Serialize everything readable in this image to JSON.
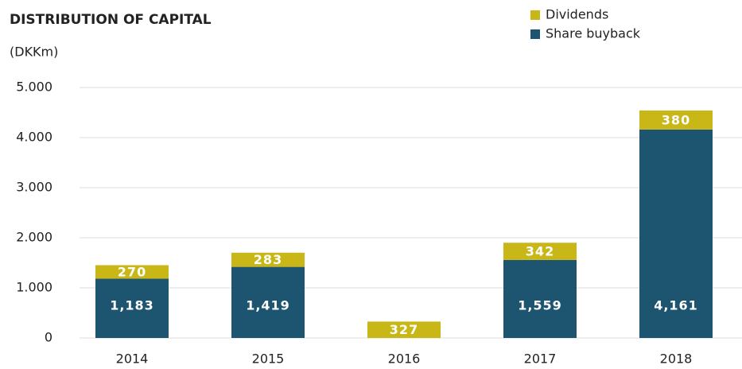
{
  "chart_data": {
    "type": "stacked_bar",
    "title": "DISTRIBUTION OF CAPITAL",
    "subtitle": "(DKKm)",
    "categories": [
      "2014",
      "2015",
      "2016",
      "2017",
      "2018"
    ],
    "series": [
      {
        "name": "Share buyback",
        "color": "#1d5470",
        "values": [
          1183,
          1419,
          null,
          1559,
          4161
        ],
        "value_labels": [
          "1,183",
          "1,419",
          null,
          "1,559",
          "4,161"
        ]
      },
      {
        "name": "Dividends",
        "color": "#c9b617",
        "values": [
          270,
          283,
          327,
          342,
          380
        ]
      }
    ],
    "ylim": [
      0,
      5000
    ],
    "yticks": [
      0,
      {
        "value": 1000,
        "label": "1.000"
      },
      {
        "value": 2000,
        "label": "2.000"
      },
      {
        "value": 3000,
        "label": "3.000"
      },
      {
        "value": 4000,
        "label": "4.000"
      },
      {
        "value": 5000,
        "label": "5.000"
      }
    ],
    "grid": true,
    "legend": "top-right"
  }
}
